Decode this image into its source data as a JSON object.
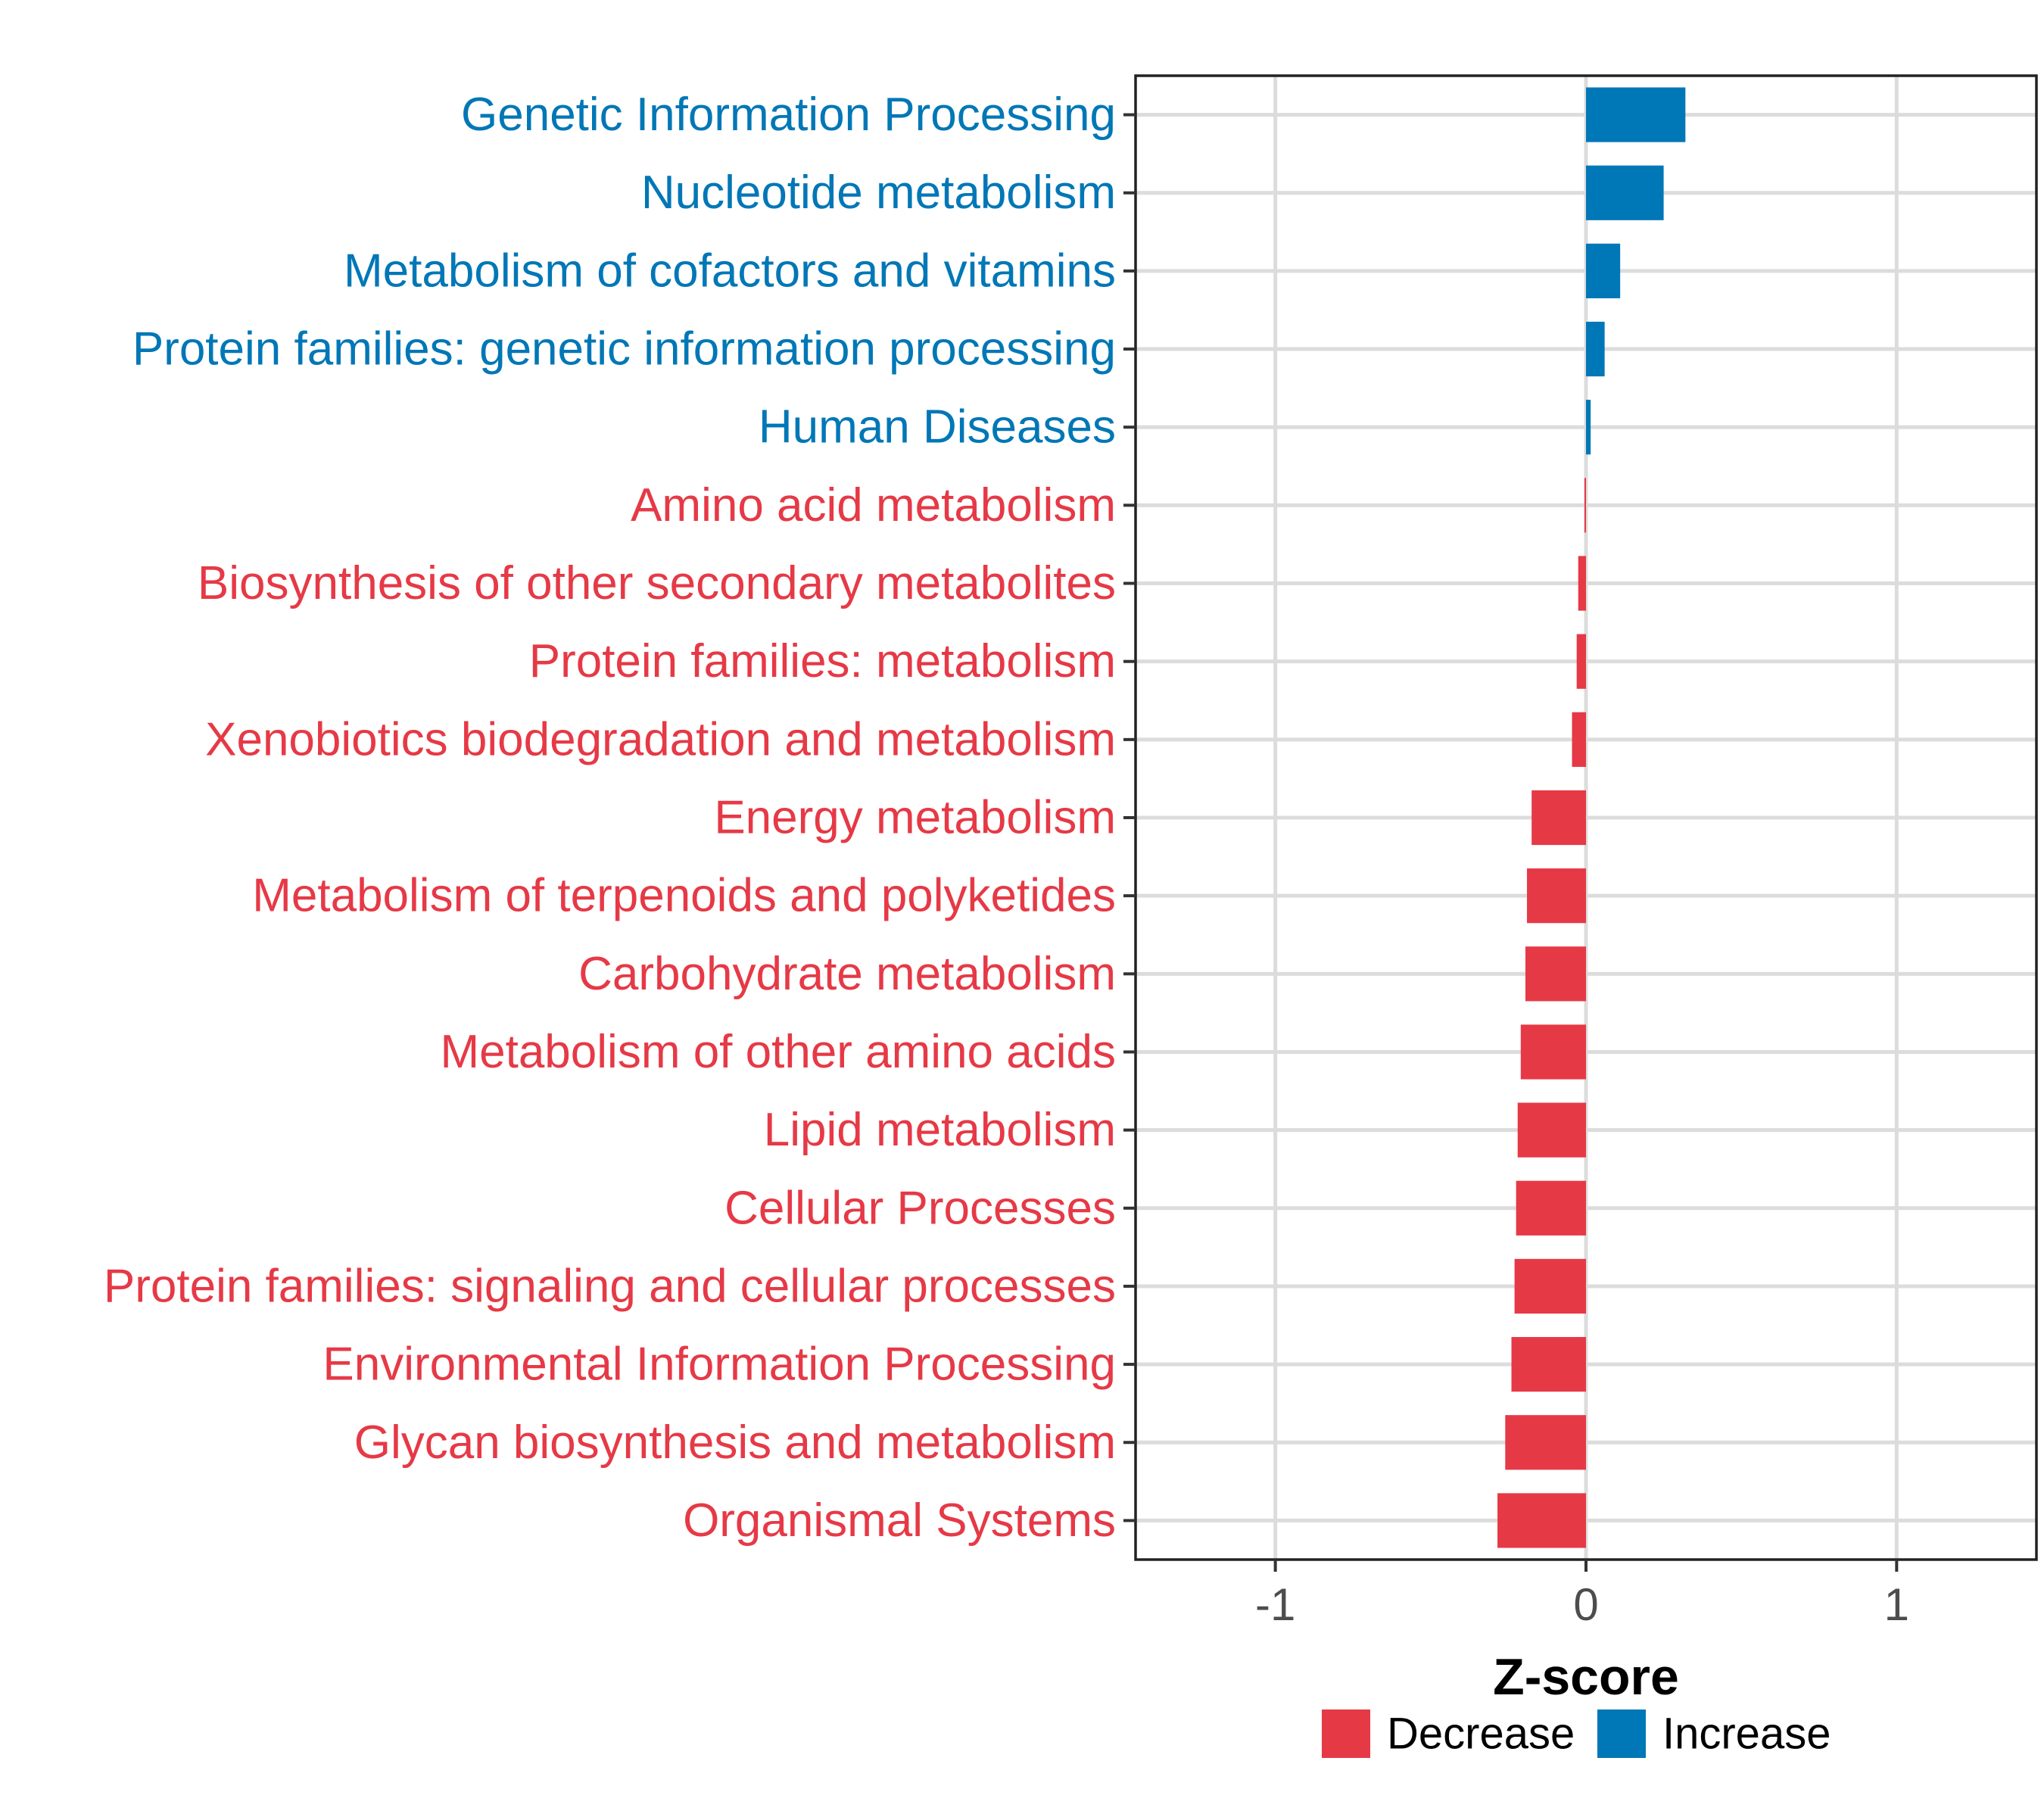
{
  "chart_data": {
    "type": "bar",
    "orientation": "horizontal",
    "title": "",
    "xlabel": "Z-score",
    "ylabel": "",
    "xlim": [
      -1.45,
      1.45
    ],
    "x_ticks": [
      -1,
      0,
      1
    ],
    "x_tick_labels": [
      "-1",
      "0",
      "1"
    ],
    "grid": true,
    "legend_position": "bottom",
    "colors": {
      "Decrease": "#e63946",
      "Increase": "#0077b6"
    },
    "legend": [
      {
        "label": "Decrease",
        "color": "#e63946"
      },
      {
        "label": "Increase",
        "color": "#0077b6"
      }
    ],
    "categories": [
      "Genetic Information Processing",
      "Nucleotide metabolism",
      "Metabolism of cofactors and vitamins",
      "Protein families: genetic information processing",
      "Human Diseases",
      "Amino acid metabolism",
      "Biosynthesis of other secondary metabolites",
      "Protein families: metabolism",
      "Xenobiotics biodegradation and metabolism",
      "Energy metabolism",
      "Metabolism of terpenoids and polyketides",
      "Carbohydrate metabolism",
      "Metabolism of other amino acids",
      "Lipid metabolism",
      "Cellular Processes",
      "Protein families: signaling and cellular processes",
      "Environmental Information Processing",
      "Glycan biosynthesis and metabolism",
      "Organismal Systems"
    ],
    "values": [
      0.32,
      0.25,
      0.11,
      0.06,
      0.015,
      -0.005,
      -0.025,
      -0.03,
      -0.045,
      -0.175,
      -0.19,
      -0.195,
      -0.21,
      -0.22,
      -0.225,
      -0.23,
      -0.24,
      -0.26,
      -0.285
    ],
    "groups": [
      "Increase",
      "Increase",
      "Increase",
      "Increase",
      "Increase",
      "Decrease",
      "Decrease",
      "Decrease",
      "Decrease",
      "Decrease",
      "Decrease",
      "Decrease",
      "Decrease",
      "Decrease",
      "Decrease",
      "Decrease",
      "Decrease",
      "Decrease",
      "Decrease"
    ]
  }
}
